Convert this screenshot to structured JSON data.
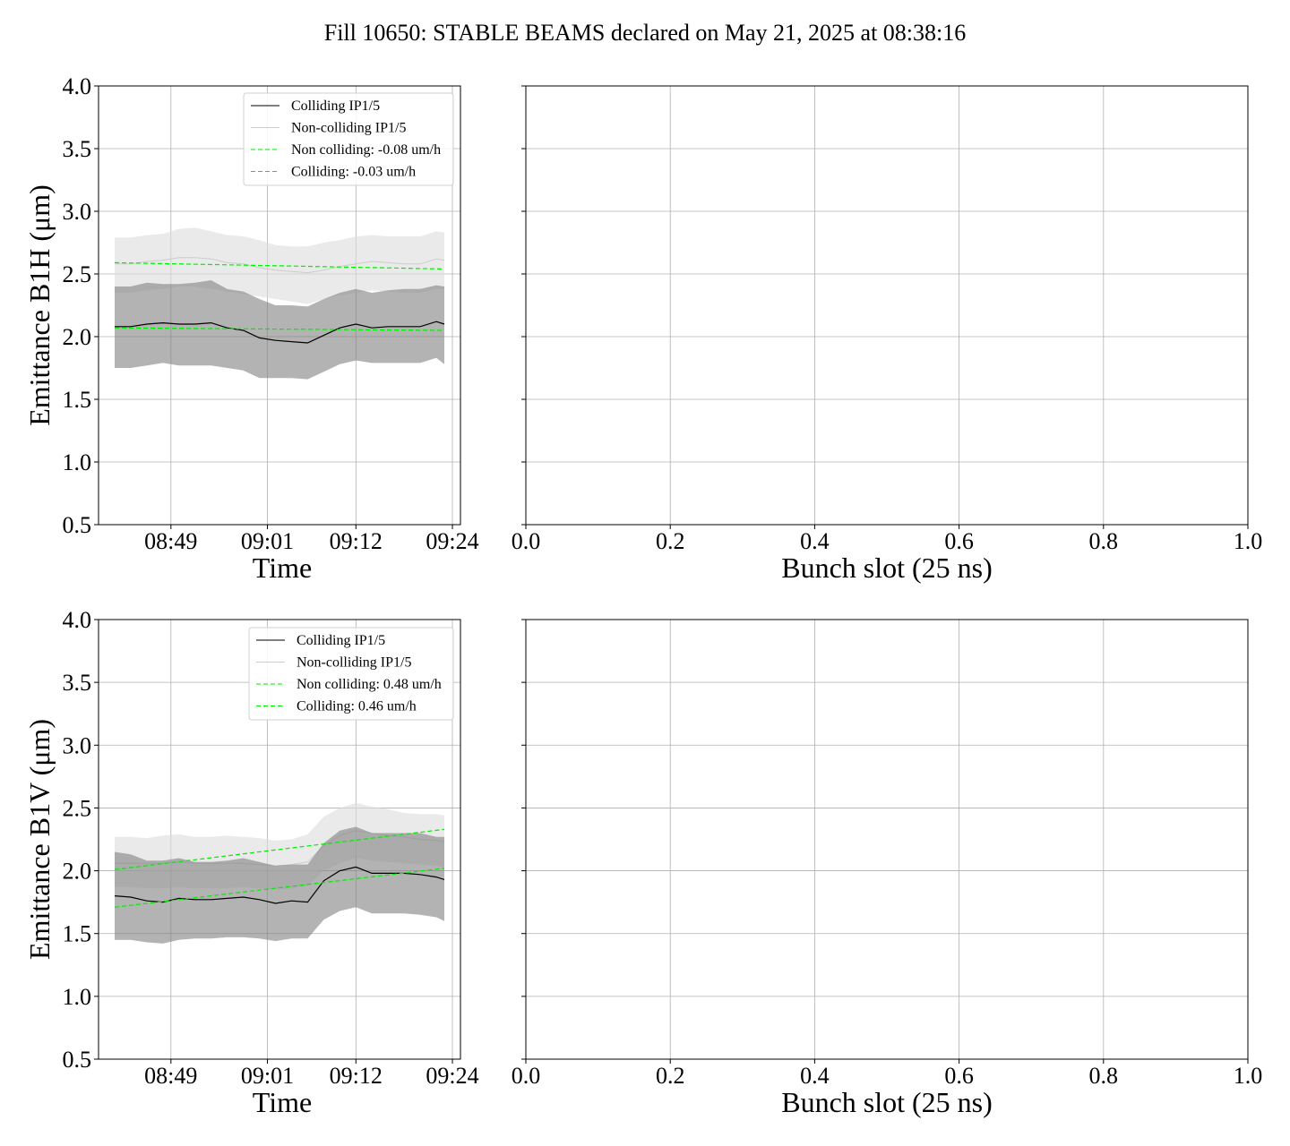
{
  "figure": {
    "title": "Fill 10650: STABLE BEAMS declared on May 21, 2025 at 08:38:16"
  },
  "chart_data": [
    {
      "type": "line",
      "panel": "top-left",
      "ylabel": "Emittance B1H (μm)",
      "xlabel": "Time",
      "ylim": [
        0.5,
        4.0
      ],
      "yticks": [
        "0.5",
        "1.0",
        "1.5",
        "2.0",
        "2.5",
        "3.0",
        "3.5",
        "4.0"
      ],
      "xlim": [
        "08:40",
        "09:25"
      ],
      "xticks": [
        "08:49",
        "09:01",
        "09:12",
        "09:24"
      ],
      "grid": true,
      "legend_position": "upper-right",
      "legend": [
        "Colliding IP1/5",
        "Non-colliding IP1/5",
        "Non colliding: -0.08 um/h",
        "Colliding: -0.03 um/h"
      ],
      "x": [
        "08:42",
        "08:44",
        "08:46",
        "08:48",
        "08:50",
        "08:52",
        "08:54",
        "08:56",
        "08:58",
        "09:00",
        "09:02",
        "09:04",
        "09:06",
        "09:08",
        "09:10",
        "09:12",
        "09:14",
        "09:16",
        "09:18",
        "09:20",
        "09:22",
        "09:23"
      ],
      "series": [
        {
          "name": "Colliding IP1/5",
          "color": "#000000",
          "values": [
            2.08,
            2.08,
            2.1,
            2.11,
            2.1,
            2.1,
            2.11,
            2.07,
            2.05,
            1.99,
            1.97,
            1.96,
            1.95,
            2.01,
            2.07,
            2.1,
            2.07,
            2.08,
            2.08,
            2.08,
            2.12,
            2.1
          ],
          "band_upper": [
            2.4,
            2.4,
            2.43,
            2.42,
            2.42,
            2.43,
            2.45,
            2.38,
            2.36,
            2.3,
            2.25,
            2.25,
            2.24,
            2.3,
            2.35,
            2.38,
            2.35,
            2.37,
            2.38,
            2.38,
            2.41,
            2.4
          ],
          "band_lower": [
            1.75,
            1.75,
            1.77,
            1.79,
            1.77,
            1.77,
            1.77,
            1.75,
            1.73,
            1.67,
            1.67,
            1.67,
            1.66,
            1.72,
            1.78,
            1.81,
            1.79,
            1.79,
            1.79,
            1.79,
            1.83,
            1.78
          ]
        },
        {
          "name": "Non-colliding IP1/5",
          "color": "#cccccc",
          "values": [
            2.58,
            2.58,
            2.6,
            2.61,
            2.63,
            2.63,
            2.62,
            2.59,
            2.58,
            2.55,
            2.53,
            2.52,
            2.51,
            2.53,
            2.56,
            2.58,
            2.6,
            2.59,
            2.58,
            2.58,
            2.62,
            2.61
          ],
          "band_upper": [
            2.79,
            2.79,
            2.81,
            2.82,
            2.86,
            2.87,
            2.84,
            2.81,
            2.8,
            2.77,
            2.73,
            2.72,
            2.72,
            2.75,
            2.77,
            2.8,
            2.81,
            2.8,
            2.8,
            2.8,
            2.84,
            2.83
          ],
          "band_lower": [
            2.35,
            2.35,
            2.37,
            2.38,
            2.4,
            2.4,
            2.38,
            2.36,
            2.34,
            2.32,
            2.3,
            2.28,
            2.26,
            2.3,
            2.33,
            2.35,
            2.37,
            2.36,
            2.35,
            2.35,
            2.38,
            2.38
          ]
        },
        {
          "name": "Non colliding: -0.08 um/h",
          "style": "dashed",
          "color": "#00ee00",
          "x": [
            "08:42",
            "09:23"
          ],
          "values": [
            2.59,
            2.54
          ]
        },
        {
          "name": "Colliding: -0.03 um/h",
          "style": "dashed",
          "color": "#00ee00",
          "x": [
            "08:42",
            "09:23"
          ],
          "values": [
            2.07,
            2.05
          ]
        }
      ]
    },
    {
      "type": "line",
      "panel": "top-right",
      "xlabel": "Bunch slot (25 ns)",
      "xlim": [
        0.0,
        1.0
      ],
      "xticks": [
        "0.0",
        "0.2",
        "0.4",
        "0.6",
        "0.8",
        "1.0"
      ],
      "ylim": [
        0.5,
        4.0
      ],
      "grid": true
    },
    {
      "type": "line",
      "panel": "bottom-left",
      "ylabel": "Emittance B1V (μm)",
      "xlabel": "Time",
      "ylim": [
        0.5,
        4.0
      ],
      "yticks": [
        "0.5",
        "1.0",
        "1.5",
        "2.0",
        "2.5",
        "3.0",
        "3.5",
        "4.0"
      ],
      "xlim": [
        "08:40",
        "09:25"
      ],
      "xticks": [
        "08:49",
        "09:01",
        "09:12",
        "09:24"
      ],
      "grid": true,
      "legend_position": "upper-right",
      "legend": [
        "Colliding IP1/5",
        "Non-colliding IP1/5",
        "Non colliding: 0.48 um/h",
        "Colliding: 0.46 um/h"
      ],
      "x": [
        "08:42",
        "08:44",
        "08:46",
        "08:48",
        "08:50",
        "08:52",
        "08:54",
        "08:56",
        "08:58",
        "09:00",
        "09:02",
        "09:04",
        "09:06",
        "09:08",
        "09:10",
        "09:12",
        "09:14",
        "09:16",
        "09:18",
        "09:20",
        "09:22",
        "09:23"
      ],
      "series": [
        {
          "name": "Colliding IP1/5",
          "color": "#000000",
          "values": [
            1.8,
            1.79,
            1.76,
            1.75,
            1.78,
            1.77,
            1.77,
            1.78,
            1.79,
            1.77,
            1.74,
            1.76,
            1.75,
            1.92,
            2.0,
            2.03,
            1.98,
            1.98,
            1.98,
            1.97,
            1.95,
            1.93
          ],
          "band_upper": [
            2.15,
            2.13,
            2.08,
            2.08,
            2.1,
            2.07,
            2.07,
            2.08,
            2.1,
            2.07,
            2.04,
            2.05,
            2.05,
            2.22,
            2.32,
            2.35,
            2.3,
            2.3,
            2.3,
            2.3,
            2.27,
            2.27
          ],
          "band_lower": [
            1.45,
            1.45,
            1.43,
            1.42,
            1.45,
            1.46,
            1.46,
            1.47,
            1.47,
            1.46,
            1.44,
            1.46,
            1.46,
            1.61,
            1.68,
            1.71,
            1.66,
            1.66,
            1.66,
            1.65,
            1.63,
            1.6
          ]
        },
        {
          "name": "Non-colliding IP1/5",
          "color": "#cccccc",
          "values": [
            2.06,
            2.06,
            2.06,
            2.06,
            2.07,
            2.06,
            2.06,
            2.06,
            2.06,
            2.05,
            2.04,
            2.05,
            2.07,
            2.2,
            2.28,
            2.32,
            2.3,
            2.28,
            2.27,
            2.25,
            2.24,
            2.23
          ],
          "band_upper": [
            2.27,
            2.27,
            2.26,
            2.28,
            2.29,
            2.27,
            2.27,
            2.28,
            2.27,
            2.26,
            2.24,
            2.25,
            2.29,
            2.43,
            2.5,
            2.54,
            2.51,
            2.49,
            2.46,
            2.45,
            2.45,
            2.44
          ],
          "band_lower": [
            1.87,
            1.87,
            1.86,
            1.86,
            1.87,
            1.86,
            1.86,
            1.86,
            1.87,
            1.86,
            1.85,
            1.86,
            1.88,
            2.0,
            2.06,
            2.1,
            2.08,
            2.07,
            2.06,
            2.05,
            2.04,
            2.03
          ]
        },
        {
          "name": "Non colliding: 0.48 um/h",
          "style": "dashed",
          "color": "#00ee00",
          "x": [
            "08:42",
            "09:23"
          ],
          "values": [
            2.01,
            2.33
          ]
        },
        {
          "name": "Colliding: 0.46 um/h",
          "style": "dashed",
          "color": "#00ee00",
          "x": [
            "08:42",
            "09:23"
          ],
          "values": [
            1.71,
            2.02
          ]
        }
      ]
    },
    {
      "type": "line",
      "panel": "bottom-right",
      "xlabel": "Bunch slot (25 ns)",
      "xlim": [
        0.0,
        1.0
      ],
      "xticks": [
        "0.0",
        "0.2",
        "0.4",
        "0.6",
        "0.8",
        "1.0"
      ],
      "ylim": [
        0.5,
        4.0
      ],
      "grid": true
    }
  ]
}
